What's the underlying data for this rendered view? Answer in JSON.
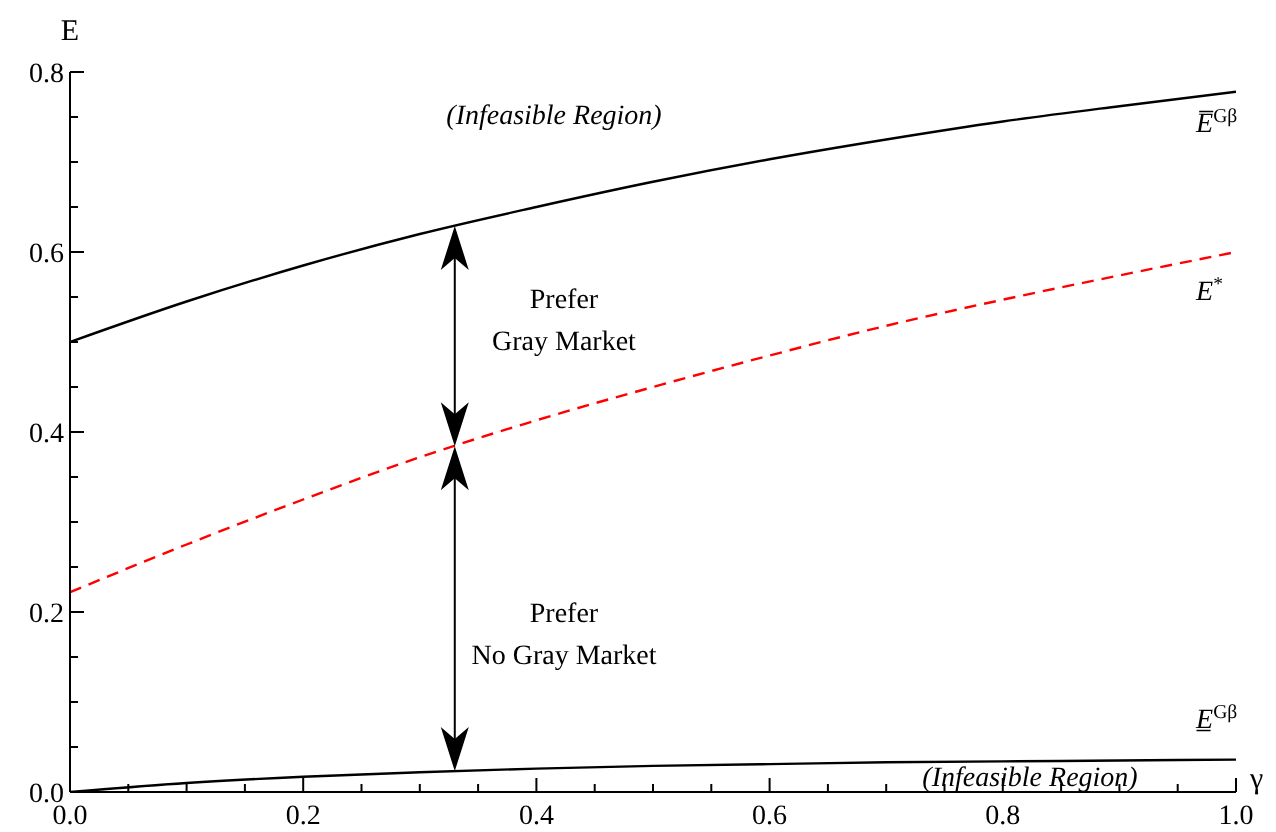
{
  "chart_data": {
    "type": "line",
    "xlabel": "γ",
    "ylabel": "E",
    "x": [
      0,
      0.1,
      0.2,
      0.3,
      0.4,
      0.5,
      0.6,
      0.7,
      0.8,
      0.9,
      1.0
    ],
    "series": [
      {
        "name": "E̅$^{Gβ}$",
        "color": "#000000",
        "line_style": "solid",
        "values": [
          0.5,
          0.545,
          0.585,
          0.62,
          0.65,
          0.678,
          0.703,
          0.725,
          0.745,
          0.762,
          0.778
        ]
      },
      {
        "name": "E$^{*}$",
        "color": "#ff0000",
        "line_style": "dashed",
        "values": [
          0.222,
          0.275,
          0.325,
          0.372,
          0.413,
          0.45,
          0.485,
          0.518,
          0.547,
          0.574,
          0.6
        ]
      },
      {
        "name": "E̲$^{Gβ}$",
        "color": "#000000",
        "line_style": "solid",
        "values": [
          0,
          0.01,
          0.017,
          0.022,
          0.026,
          0.029,
          0.031,
          0.033,
          0.034,
          0.035,
          0.036
        ]
      }
    ],
    "marker": "none",
    "xlim": [
      0,
      1
    ],
    "ylim": [
      0,
      0.8
    ],
    "xticks": [
      {
        "value": 0,
        "label": "0.0"
      },
      {
        "value": 0.05,
        "label": null
      },
      {
        "value": 0.1,
        "label": null
      },
      {
        "value": 0.15,
        "label": null
      },
      {
        "value": 0.2,
        "label": "0.2"
      },
      {
        "value": 0.25,
        "label": null
      },
      {
        "value": 0.3,
        "label": null
      },
      {
        "value": 0.35,
        "label": null
      },
      {
        "value": 0.4,
        "label": "0.4"
      },
      {
        "value": 0.45,
        "label": null
      },
      {
        "value": 0.5,
        "label": null
      },
      {
        "value": 0.55,
        "label": null
      },
      {
        "value": 0.6,
        "label": "0.6"
      },
      {
        "value": 0.65,
        "label": null
      },
      {
        "value": 0.7,
        "label": null
      },
      {
        "value": 0.75,
        "label": null
      },
      {
        "value": 0.8,
        "label": "0.8"
      },
      {
        "value": 0.85,
        "label": null
      },
      {
        "value": 0.9,
        "label": null
      },
      {
        "value": 0.95,
        "label": null
      },
      {
        "value": 1,
        "label": "1.0"
      }
    ],
    "yticks": [
      {
        "value": 0,
        "label": "0.0"
      },
      {
        "value": 0.05,
        "label": null
      },
      {
        "value": 0.1,
        "label": null
      },
      {
        "value": 0.15,
        "label": null
      },
      {
        "value": 0.2,
        "label": "0.2"
      },
      {
        "value": 0.25,
        "label": null
      },
      {
        "value": 0.3,
        "label": null
      },
      {
        "value": 0.35,
        "label": null
      },
      {
        "value": 0.4,
        "label": "0.4"
      },
      {
        "value": 0.45,
        "label": null
      },
      {
        "value": 0.5,
        "label": null
      },
      {
        "value": 0.55,
        "label": null
      },
      {
        "value": 0.6,
        "label": "0.6"
      },
      {
        "value": 0.65,
        "label": null
      },
      {
        "value": 0.7,
        "label": null
      },
      {
        "value": 0.75,
        "label": null
      },
      {
        "value": 0.8,
        "label": "0.8"
      }
    ],
    "annotations": [
      "(Infeasible Region)",
      "Prefer\nGray Market",
      "Prefer\nNo Gray Market",
      "(Infeasible Region)"
    ]
  }
}
